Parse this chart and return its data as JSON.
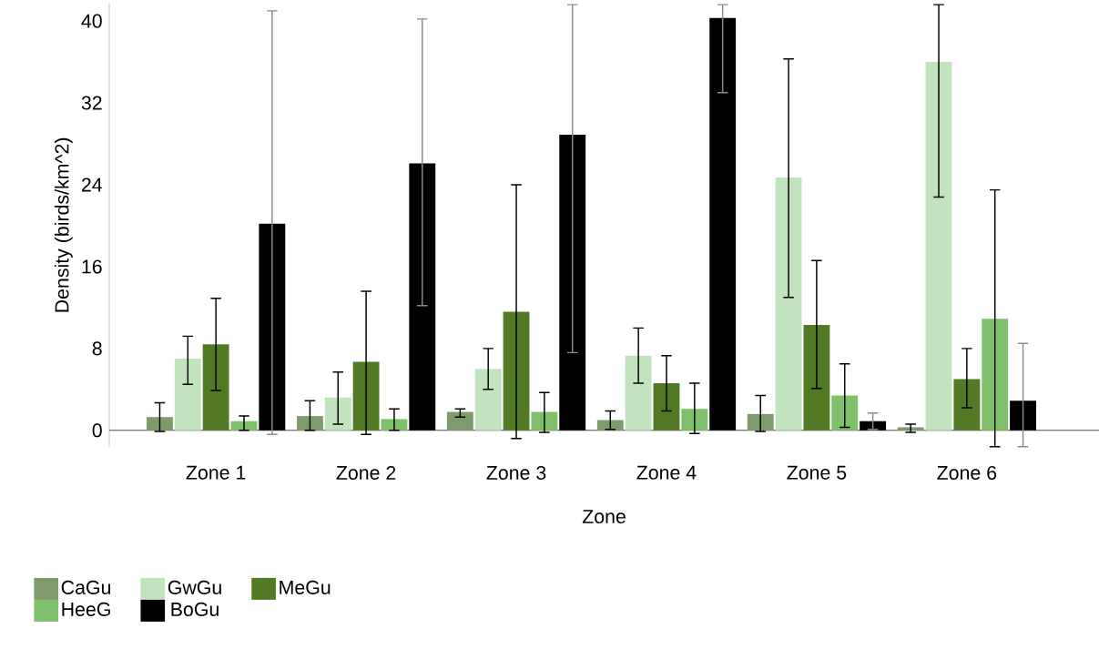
{
  "chart_data": {
    "type": "bar",
    "xlabel": "Zone",
    "ylabel": "Density (birds/km^2)",
    "categories": [
      "Zone 1",
      "Zone 2",
      "Zone 3",
      "Zone 4",
      "Zone 5",
      "Zone 6"
    ],
    "series": [
      {
        "name": "CaGu",
        "color": "#7f9a6c",
        "values": [
          1.3,
          1.4,
          1.8,
          1.0,
          1.6,
          0.3
        ],
        "errors": [
          [
            -0.1,
            2.7
          ],
          [
            0.0,
            2.9
          ],
          [
            1.3,
            2.1
          ],
          [
            0.1,
            1.9
          ],
          [
            -0.1,
            3.4
          ],
          [
            -0.2,
            0.6
          ]
        ]
      },
      {
        "name": "GwGu",
        "color": "#c1e3bd",
        "values": [
          7.0,
          3.2,
          6.0,
          7.3,
          24.7,
          36.0
        ],
        "errors": [
          [
            4.5,
            9.2
          ],
          [
            0.6,
            5.7
          ],
          [
            4.0,
            8.0
          ],
          [
            4.6,
            10.0
          ],
          [
            13.0,
            36.3
          ],
          [
            22.8,
            41.6
          ]
        ]
      },
      {
        "name": "MeGu",
        "color": "#527a24",
        "values": [
          8.4,
          6.7,
          11.6,
          4.6,
          10.3,
          5.0
        ],
        "errors": [
          [
            3.9,
            12.9
          ],
          [
            -0.4,
            13.6
          ],
          [
            -0.8,
            24.0
          ],
          [
            1.9,
            7.3
          ],
          [
            4.1,
            16.6
          ],
          [
            2.2,
            8.0
          ]
        ]
      },
      {
        "name": "HeeG",
        "color": "#7ec16a",
        "values": [
          0.9,
          1.1,
          1.8,
          2.1,
          3.4,
          10.9
        ],
        "errors": [
          [
            0.0,
            1.4
          ],
          [
            0.0,
            2.1
          ],
          [
            -0.2,
            3.7
          ],
          [
            -0.3,
            4.6
          ],
          [
            0.3,
            6.5
          ],
          [
            -1.6,
            23.5
          ]
        ]
      },
      {
        "name": "BoGu",
        "color": "#000000",
        "values": [
          20.2,
          26.1,
          28.9,
          40.3,
          0.9,
          2.9
        ],
        "errors": [
          [
            -0.4,
            41.0
          ],
          [
            12.2,
            40.2
          ],
          [
            7.6,
            41.6
          ],
          [
            33.0,
            41.6
          ],
          [
            0.1,
            1.7
          ],
          [
            -1.6,
            8.5
          ]
        ]
      }
    ],
    "ylim": [
      -1.6,
      41.7
    ],
    "yticks": [
      0,
      8,
      16,
      24,
      32,
      40
    ],
    "grid": false,
    "legend": "bottom left"
  }
}
